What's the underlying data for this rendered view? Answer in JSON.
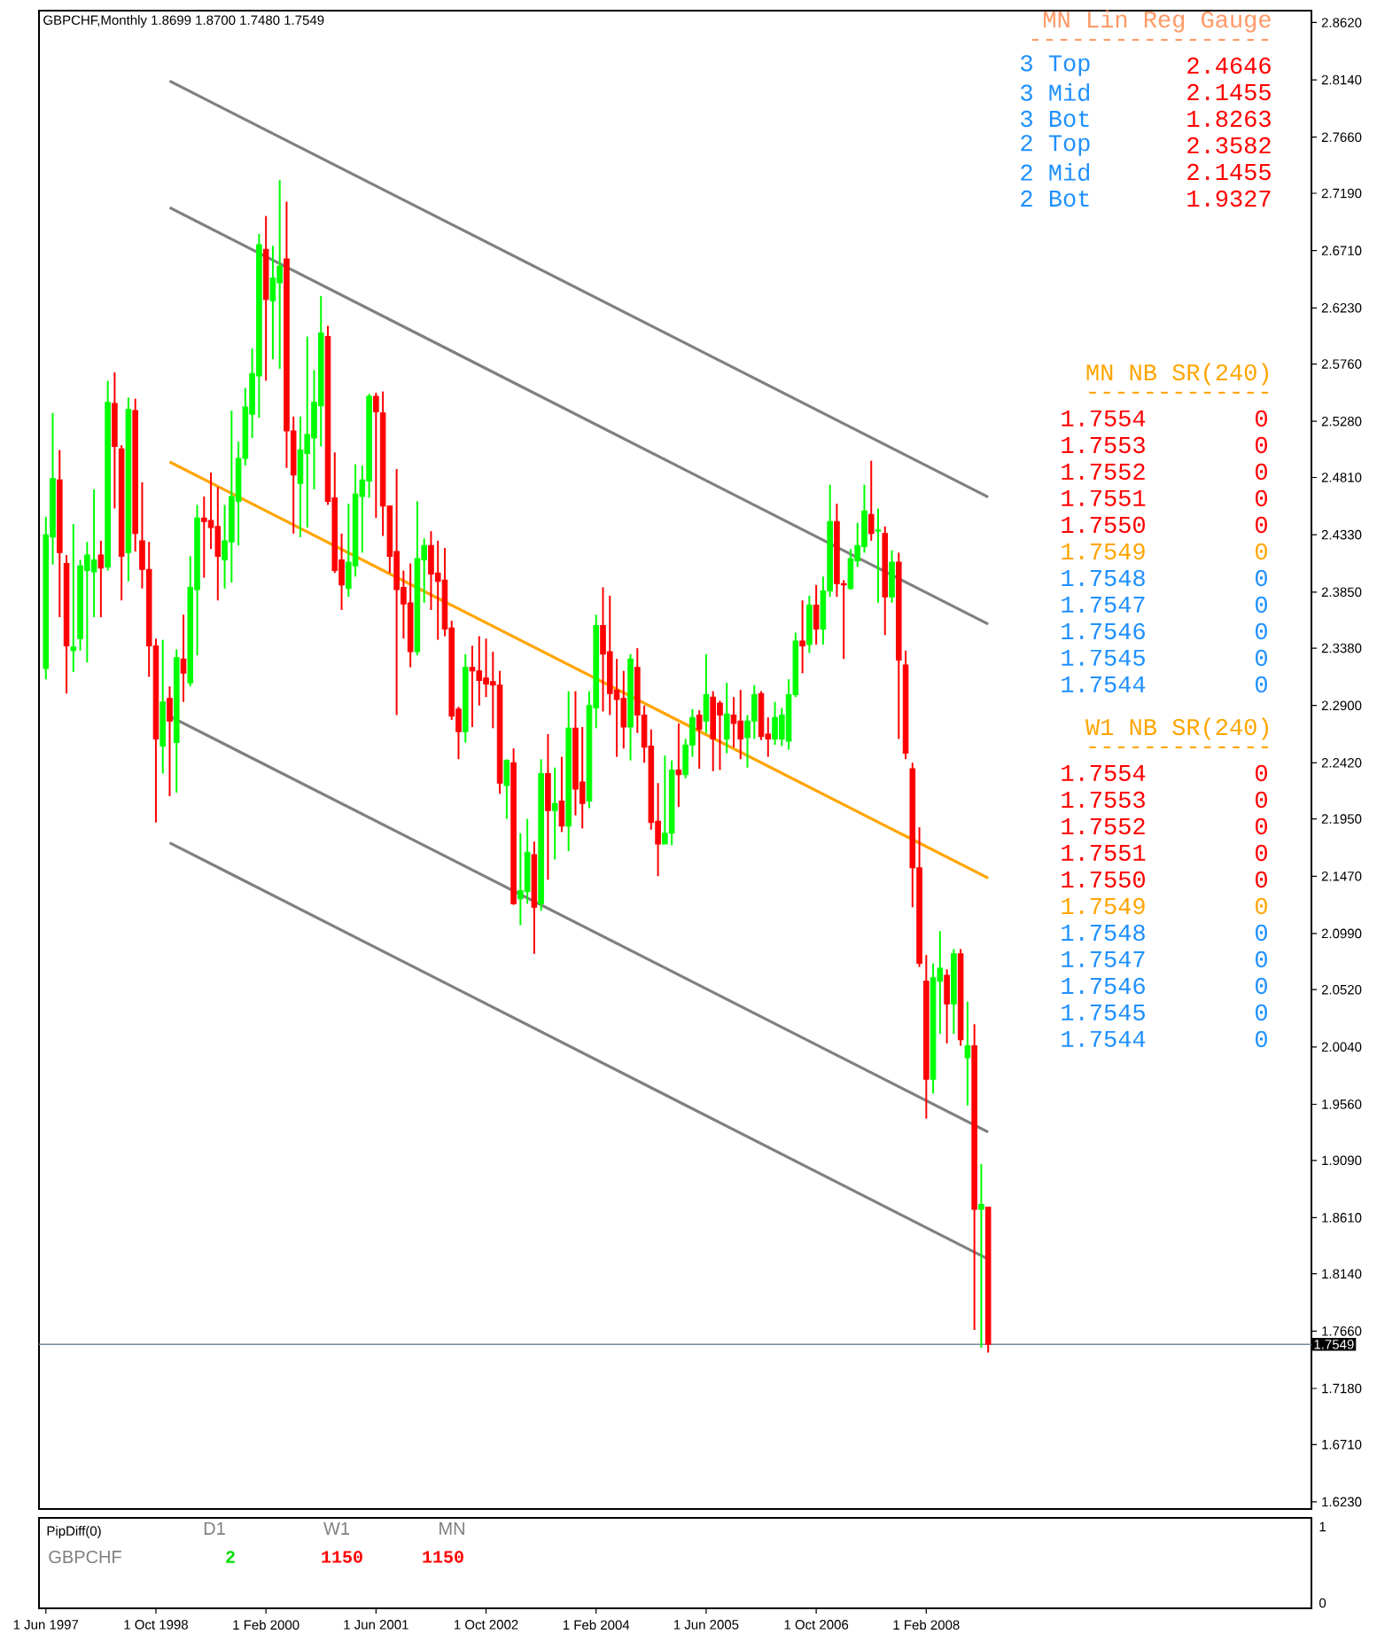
{
  "chart_data": [
    {
      "type": "candlestick",
      "title": "GBPCHF,Monthly 1.8699 1.8700 1.7480 1.7549",
      "x": [
        "1997-06",
        "1997-07",
        "1997-08",
        "1997-09",
        "1997-10",
        "1997-11",
        "1997-12",
        "1998-01",
        "1998-02",
        "1998-03",
        "1998-04",
        "1998-05",
        "1998-06",
        "1998-07",
        "1998-08",
        "1998-09",
        "1998-10",
        "1998-11",
        "1998-12",
        "1999-01",
        "1999-02",
        "1999-03",
        "1999-04",
        "1999-05",
        "1999-06",
        "1999-07",
        "1999-08",
        "1999-09",
        "1999-10",
        "1999-11",
        "1999-12",
        "2000-01",
        "2000-02",
        "2000-03",
        "2000-04",
        "2000-05",
        "2000-06",
        "2000-07",
        "2000-08",
        "2000-09",
        "2000-10",
        "2000-11",
        "2000-12",
        "2001-01",
        "2001-02",
        "2001-03",
        "2001-04",
        "2001-05",
        "2001-06",
        "2001-07",
        "2001-08",
        "2001-09",
        "2001-10",
        "2001-11",
        "2001-12",
        "2002-01",
        "2002-02",
        "2002-03",
        "2002-04",
        "2002-05",
        "2002-06",
        "2002-07",
        "2002-08",
        "2002-09",
        "2002-10",
        "2002-11",
        "2002-12",
        "2003-01",
        "2003-02",
        "2003-03",
        "2003-04",
        "2003-05",
        "2003-06",
        "2003-07",
        "2003-08",
        "2003-09",
        "2003-10",
        "2003-11",
        "2003-12",
        "2004-01",
        "2004-02",
        "2004-03",
        "2004-04",
        "2004-05",
        "2004-06",
        "2004-07",
        "2004-08",
        "2004-09",
        "2004-10",
        "2004-11",
        "2004-12",
        "2005-01",
        "2005-02",
        "2005-03",
        "2005-04",
        "2005-05",
        "2005-06",
        "2005-07",
        "2005-08",
        "2005-09",
        "2005-10",
        "2005-11",
        "2005-12",
        "2006-01",
        "2006-02",
        "2006-03",
        "2006-04",
        "2006-05",
        "2006-06",
        "2006-07",
        "2006-08",
        "2006-09",
        "2006-10",
        "2006-11",
        "2006-12",
        "2007-01",
        "2007-02",
        "2007-03",
        "2007-04",
        "2007-05",
        "2007-06",
        "2007-07",
        "2007-08",
        "2007-09",
        "2007-10",
        "2007-11",
        "2007-12",
        "2008-01",
        "2008-02",
        "2008-03",
        "2008-04",
        "2008-05",
        "2008-06",
        "2008-07",
        "2008-08",
        "2008-09",
        "2008-10",
        "2008-11"
      ],
      "ohlc": [
        [
          2.321,
          2.448,
          2.312,
          2.433
        ],
        [
          2.431,
          2.535,
          2.408,
          2.48
        ],
        [
          2.479,
          2.504,
          2.364,
          2.418
        ],
        [
          2.409,
          2.416,
          2.3,
          2.34
        ],
        [
          2.336,
          2.442,
          2.318,
          2.339
        ],
        [
          2.346,
          2.412,
          2.336,
          2.407
        ],
        [
          2.403,
          2.427,
          2.326,
          2.416
        ],
        [
          2.402,
          2.471,
          2.364,
          2.412
        ],
        [
          2.416,
          2.428,
          2.364,
          2.405
        ],
        [
          2.406,
          2.562,
          2.403,
          2.544
        ],
        [
          2.543,
          2.569,
          2.455,
          2.507
        ],
        [
          2.505,
          2.508,
          2.378,
          2.415
        ],
        [
          2.418,
          2.548,
          2.394,
          2.538
        ],
        [
          2.537,
          2.547,
          2.419,
          2.434
        ],
        [
          2.428,
          2.477,
          2.388,
          2.404
        ],
        [
          2.404,
          2.427,
          2.314,
          2.34
        ],
        [
          2.34,
          2.346,
          2.192,
          2.262
        ],
        [
          2.256,
          2.345,
          2.233,
          2.293
        ],
        [
          2.296,
          2.306,
          2.214,
          2.277
        ],
        [
          2.259,
          2.337,
          2.217,
          2.33
        ],
        [
          2.329,
          2.366,
          2.293,
          2.317
        ],
        [
          2.309,
          2.415,
          2.306,
          2.389
        ],
        [
          2.387,
          2.458,
          2.332,
          2.447
        ],
        [
          2.447,
          2.465,
          2.397,
          2.444
        ],
        [
          2.445,
          2.485,
          2.421,
          2.439
        ],
        [
          2.44,
          2.473,
          2.378,
          2.415
        ],
        [
          2.412,
          2.458,
          2.388,
          2.428
        ],
        [
          2.427,
          2.537,
          2.393,
          2.465
        ],
        [
          2.461,
          2.511,
          2.424,
          2.497
        ],
        [
          2.497,
          2.556,
          2.491,
          2.54
        ],
        [
          2.534,
          2.589,
          2.514,
          2.568
        ],
        [
          2.566,
          2.685,
          2.531,
          2.676
        ],
        [
          2.672,
          2.7,
          2.562,
          2.63
        ],
        [
          2.629,
          2.675,
          2.58,
          2.648
        ],
        [
          2.644,
          2.73,
          2.572,
          2.658
        ],
        [
          2.664,
          2.712,
          2.489,
          2.52
        ],
        [
          2.52,
          2.532,
          2.434,
          2.483
        ],
        [
          2.476,
          2.532,
          2.431,
          2.504
        ],
        [
          2.501,
          2.599,
          2.439,
          2.517
        ],
        [
          2.514,
          2.571,
          2.471,
          2.544
        ],
        [
          2.541,
          2.633,
          2.507,
          2.602
        ],
        [
          2.599,
          2.608,
          2.458,
          2.461
        ],
        [
          2.464,
          2.502,
          2.401,
          2.403
        ],
        [
          2.412,
          2.434,
          2.37,
          2.391
        ],
        [
          2.388,
          2.459,
          2.381,
          2.41
        ],
        [
          2.407,
          2.492,
          2.398,
          2.467
        ],
        [
          2.465,
          2.491,
          2.418,
          2.479
        ],
        [
          2.478,
          2.551,
          2.464,
          2.549
        ],
        [
          2.549,
          2.552,
          2.447,
          2.536
        ],
        [
          2.535,
          2.553,
          2.432,
          2.457
        ],
        [
          2.457,
          2.457,
          2.401,
          2.415
        ],
        [
          2.419,
          2.488,
          2.282,
          2.387
        ],
        [
          2.389,
          2.403,
          2.346,
          2.375
        ],
        [
          2.376,
          2.409,
          2.322,
          2.335
        ],
        [
          2.335,
          2.461,
          2.332,
          2.413
        ],
        [
          2.412,
          2.43,
          2.376,
          2.424
        ],
        [
          2.424,
          2.436,
          2.37,
          2.4
        ],
        [
          2.401,
          2.428,
          2.345,
          2.394
        ],
        [
          2.395,
          2.422,
          2.348,
          2.354
        ],
        [
          2.355,
          2.361,
          2.278,
          2.281
        ],
        [
          2.287,
          2.289,
          2.245,
          2.268
        ],
        [
          2.268,
          2.333,
          2.259,
          2.322
        ],
        [
          2.322,
          2.34,
          2.272,
          2.319
        ],
        [
          2.319,
          2.348,
          2.29,
          2.311
        ],
        [
          2.313,
          2.346,
          2.297,
          2.308
        ],
        [
          2.31,
          2.335,
          2.271,
          2.307
        ],
        [
          2.307,
          2.319,
          2.216,
          2.225
        ],
        [
          2.223,
          2.245,
          2.195,
          2.244
        ],
        [
          2.242,
          2.254,
          2.123,
          2.124
        ],
        [
          2.128,
          2.183,
          2.106,
          2.135
        ],
        [
          2.134,
          2.195,
          2.124,
          2.167
        ],
        [
          2.165,
          2.176,
          2.082,
          2.121
        ],
        [
          2.124,
          2.245,
          2.118,
          2.233
        ],
        [
          2.233,
          2.266,
          2.144,
          2.202
        ],
        [
          2.202,
          2.238,
          2.161,
          2.208
        ],
        [
          2.21,
          2.247,
          2.184,
          2.189
        ],
        [
          2.189,
          2.302,
          2.168,
          2.271
        ],
        [
          2.271,
          2.302,
          2.198,
          2.22
        ],
        [
          2.226,
          2.272,
          2.187,
          2.208
        ],
        [
          2.21,
          2.302,
          2.204,
          2.29
        ],
        [
          2.288,
          2.366,
          2.271,
          2.357
        ],
        [
          2.357,
          2.389,
          2.285,
          2.333
        ],
        [
          2.335,
          2.382,
          2.282,
          2.3
        ],
        [
          2.303,
          2.329,
          2.247,
          2.295
        ],
        [
          2.296,
          2.319,
          2.254,
          2.272
        ],
        [
          2.272,
          2.333,
          2.244,
          2.329
        ],
        [
          2.322,
          2.338,
          2.267,
          2.282
        ],
        [
          2.282,
          2.29,
          2.242,
          2.255
        ],
        [
          2.256,
          2.27,
          2.186,
          2.192
        ],
        [
          2.193,
          2.225,
          2.147,
          2.174
        ],
        [
          2.174,
          2.248,
          2.174,
          2.183
        ],
        [
          2.183,
          2.244,
          2.173,
          2.236
        ],
        [
          2.236,
          2.275,
          2.205,
          2.232
        ],
        [
          2.232,
          2.262,
          2.229,
          2.257
        ],
        [
          2.257,
          2.287,
          2.247,
          2.28
        ],
        [
          2.282,
          2.286,
          2.237,
          2.27
        ],
        [
          2.277,
          2.333,
          2.267,
          2.299
        ],
        [
          2.297,
          2.302,
          2.235,
          2.262
        ],
        [
          2.292,
          2.294,
          2.236,
          2.282
        ],
        [
          2.262,
          2.309,
          2.25,
          2.283
        ],
        [
          2.282,
          2.297,
          2.255,
          2.275
        ],
        [
          2.277,
          2.303,
          2.245,
          2.262
        ],
        [
          2.263,
          2.282,
          2.238,
          2.277
        ],
        [
          2.277,
          2.307,
          2.262,
          2.299
        ],
        [
          2.3,
          2.302,
          2.261,
          2.264
        ],
        [
          2.266,
          2.28,
          2.247,
          2.262
        ],
        [
          2.262,
          2.293,
          2.257,
          2.28
        ],
        [
          2.262,
          2.288,
          2.256,
          2.282
        ],
        [
          2.26,
          2.312,
          2.253,
          2.299
        ],
        [
          2.299,
          2.351,
          2.297,
          2.344
        ],
        [
          2.344,
          2.378,
          2.317,
          2.34
        ],
        [
          2.341,
          2.382,
          2.334,
          2.374
        ],
        [
          2.374,
          2.391,
          2.341,
          2.354
        ],
        [
          2.354,
          2.398,
          2.341,
          2.386
        ],
        [
          2.386,
          2.475,
          2.381,
          2.444
        ],
        [
          2.444,
          2.459,
          2.381,
          2.392
        ],
        [
          2.392,
          2.395,
          2.329,
          2.391
        ],
        [
          2.388,
          2.421,
          2.387,
          2.413
        ],
        [
          2.411,
          2.443,
          2.406,
          2.424
        ],
        [
          2.423,
          2.475,
          2.418,
          2.453
        ],
        [
          2.45,
          2.495,
          2.428,
          2.434
        ],
        [
          2.436,
          2.455,
          2.376,
          2.437
        ],
        [
          2.434,
          2.44,
          2.349,
          2.381
        ],
        [
          2.381,
          2.42,
          2.376,
          2.41
        ],
        [
          2.41,
          2.418,
          2.262,
          2.328
        ],
        [
          2.324,
          2.336,
          2.245,
          2.25
        ],
        [
          2.237,
          2.242,
          2.121,
          2.154
        ],
        [
          2.154,
          2.188,
          2.071,
          2.074
        ],
        [
          2.059,
          2.081,
          1.944,
          1.977
        ],
        [
          1.977,
          2.074,
          1.965,
          2.062
        ],
        [
          2.059,
          2.101,
          2.015,
          2.07
        ],
        [
          2.064,
          2.069,
          2.007,
          2.04
        ],
        [
          2.04,
          2.086,
          2.015,
          2.082
        ],
        [
          2.082,
          2.086,
          2.005,
          2.01
        ],
        [
          1.995,
          2.042,
          1.955,
          2.005
        ],
        [
          2.005,
          2.023,
          1.767,
          1.868
        ],
        [
          1.868,
          1.906,
          1.752,
          1.872
        ],
        [
          1.8699,
          1.87,
          1.748,
          1.7549
        ]
      ],
      "colors": [
        "#00ff00",
        "#00ff00",
        "#ff0000",
        "#ff0000",
        "#00ff00",
        "#00ff00",
        "#00ff00",
        "#00ff00",
        "#ff0000",
        "#00ff00",
        "#ff0000",
        "#ff0000",
        "#00ff00",
        "#ff0000",
        "#ff0000",
        "#ff0000",
        "#ff0000",
        "#00ff00",
        "#ff0000",
        "#00ff00",
        "#ff0000",
        "#00ff00",
        "#00ff00",
        "#ff0000",
        "#ff0000",
        "#ff0000",
        "#00ff00",
        "#00ff00",
        "#00ff00",
        "#00ff00",
        "#00ff00",
        "#00ff00",
        "#ff0000",
        "#00ff00",
        "#00ff00",
        "#ff0000",
        "#ff0000",
        "#00ff00",
        "#00ff00",
        "#00ff00",
        "#00ff00",
        "#ff0000",
        "#ff0000",
        "#ff0000",
        "#00ff00",
        "#00ff00",
        "#00ff00",
        "#00ff00",
        "#ff0000",
        "#ff0000",
        "#ff0000",
        "#ff0000",
        "#ff0000",
        "#ff0000",
        "#00ff00",
        "#00ff00",
        "#ff0000",
        "#ff0000",
        "#ff0000",
        "#ff0000",
        "#ff0000",
        "#00ff00",
        "#ff0000",
        "#ff0000",
        "#ff0000",
        "#ff0000",
        "#ff0000",
        "#00ff00",
        "#ff0000",
        "#00ff00",
        "#00ff00",
        "#ff0000",
        "#00ff00",
        "#ff0000",
        "#00ff00",
        "#ff0000",
        "#00ff00",
        "#ff0000",
        "#ff0000",
        "#00ff00",
        "#00ff00",
        "#ff0000",
        "#ff0000",
        "#ff0000",
        "#ff0000",
        "#00ff00",
        "#ff0000",
        "#ff0000",
        "#ff0000",
        "#ff0000",
        "#00ff00",
        "#00ff00",
        "#ff0000",
        "#00ff00",
        "#00ff00",
        "#ff0000",
        "#00ff00",
        "#ff0000",
        "#ff0000",
        "#00ff00",
        "#ff0000",
        "#ff0000",
        "#00ff00",
        "#00ff00",
        "#ff0000",
        "#ff0000",
        "#00ff00",
        "#00ff00",
        "#00ff00",
        "#00ff00",
        "#ff0000",
        "#00ff00",
        "#ff0000",
        "#00ff00",
        "#00ff00",
        "#ff0000",
        "#ff0000",
        "#00ff00",
        "#00ff00",
        "#00ff00",
        "#ff0000",
        "#00ff00",
        "#ff0000",
        "#00ff00",
        "#ff0000",
        "#ff0000",
        "#ff0000",
        "#ff0000",
        "#ff0000",
        "#00ff00",
        "#00ff00",
        "#ff0000",
        "#00ff00",
        "#ff0000",
        "#00ff00",
        "#ff0000",
        "#00ff00",
        "#ff0000"
      ],
      "series": [
        {
          "type": "line",
          "color": "#808080",
          "x": [
            "1998-12",
            "2008-11"
          ],
          "values": [
            2.813,
            2.4646
          ]
        },
        {
          "type": "line",
          "color": "#808080",
          "x": [
            "1998-12",
            "2008-11"
          ],
          "values": [
            2.707,
            2.3582
          ]
        },
        {
          "type": "line",
          "color": "#ffa500",
          "x": [
            "1998-12",
            "2008-11"
          ],
          "values": [
            2.494,
            2.1455
          ]
        },
        {
          "type": "line",
          "color": "#808080",
          "x": [
            "1998-12",
            "2008-11"
          ],
          "values": [
            2.281,
            1.9327
          ]
        },
        {
          "type": "line",
          "color": "#808080",
          "x": [
            "1998-12",
            "2008-11"
          ],
          "values": [
            2.175,
            1.8263
          ]
        }
      ],
      "ref_lines": [
        {
          "axis": "y",
          "value": 1.7549,
          "label": "1.7549",
          "color": "#778899"
        }
      ],
      "annotations": [
        "MN Lin Reg Gauge",
        "-----------------",
        "3 Top",
        "2.4646",
        "3 Mid",
        "2.1455",
        "3 Bot",
        "1.8263",
        "2 Top",
        "2.3582",
        "2 Mid",
        "2.1455",
        "2 Bot",
        "1.9327",
        "MN NB SR(240)",
        "-------------",
        "1.7554",
        "0",
        "1.7553",
        "0",
        "1.7552",
        "0",
        "1.7551",
        "0",
        "1.7550",
        "0",
        "1.7549",
        "0",
        "1.7548",
        "0",
        "1.7547",
        "0",
        "1.7546",
        "0",
        "1.7545",
        "0",
        "1.7544",
        "0",
        "W1 NB SR(240)",
        "-------------",
        "1.7554",
        "0",
        "1.7553",
        "0",
        "1.7552",
        "0",
        "1.7551",
        "0",
        "1.7550",
        "0",
        "1.7549",
        "0",
        "1.7548",
        "0",
        "1.7547",
        "0",
        "1.7546",
        "0",
        "1.7545",
        "0",
        "1.7544",
        "0"
      ],
      "xlim": [
        "1997-05",
        "2012-10"
      ],
      "ylim": [
        1.617,
        2.872
      ],
      "yticks": [
        {
          "value": 2.862,
          "label": "2.8620"
        },
        {
          "value": 2.814,
          "label": "2.8140"
        },
        {
          "value": 2.766,
          "label": "2.7660"
        },
        {
          "value": 2.719,
          "label": "2.7190"
        },
        {
          "value": 2.671,
          "label": "2.6710"
        },
        {
          "value": 2.623,
          "label": "2.6230"
        },
        {
          "value": 2.576,
          "label": "2.5760"
        },
        {
          "value": 2.528,
          "label": "2.5280"
        },
        {
          "value": 2.481,
          "label": "2.4810"
        },
        {
          "value": 2.433,
          "label": "2.4330"
        },
        {
          "value": 2.385,
          "label": "2.3850"
        },
        {
          "value": 2.338,
          "label": "2.3380"
        },
        {
          "value": 2.29,
          "label": "2.2900"
        },
        {
          "value": 2.242,
          "label": "2.2420"
        },
        {
          "value": 2.195,
          "label": "2.1950"
        },
        {
          "value": 2.147,
          "label": "2.1470"
        },
        {
          "value": 2.099,
          "label": "2.0990"
        },
        {
          "value": 2.052,
          "label": "2.0520"
        },
        {
          "value": 2.004,
          "label": "2.0040"
        },
        {
          "value": 1.956,
          "label": "1.9560"
        },
        {
          "value": 1.909,
          "label": "1.9090"
        },
        {
          "value": 1.861,
          "label": "1.8610"
        },
        {
          "value": 1.814,
          "label": "1.8140"
        },
        {
          "value": 1.766,
          "label": "1.7660"
        },
        {
          "value": 1.718,
          "label": "1.7180"
        },
        {
          "value": 1.671,
          "label": "1.6710"
        },
        {
          "value": 1.623,
          "label": "1.6230"
        }
      ],
      "xticks": [
        {
          "value": "1997-06",
          "label": "1 Jun 1997"
        },
        {
          "value": "1998-10",
          "label": "1 Oct 1998"
        },
        {
          "value": "2000-02",
          "label": "1 Feb 2000"
        },
        {
          "value": "2001-06",
          "label": "1 Jun 2001"
        },
        {
          "value": "2002-10",
          "label": "1 Oct 2002"
        },
        {
          "value": "2004-02",
          "label": "1 Feb 2004"
        },
        {
          "value": "2005-06",
          "label": "1 Jun 2005"
        },
        {
          "value": "2006-10",
          "label": "1 Oct 2006"
        },
        {
          "value": "2008-02",
          "label": "1 Feb 2008"
        }
      ]
    },
    {
      "type": "other",
      "title": "PipDiff(0)",
      "annotations": [
        "D1",
        "W1",
        "MN",
        "GBPCHF",
        "2",
        "1150",
        "1150",
        "1",
        "0"
      ]
    }
  ]
}
